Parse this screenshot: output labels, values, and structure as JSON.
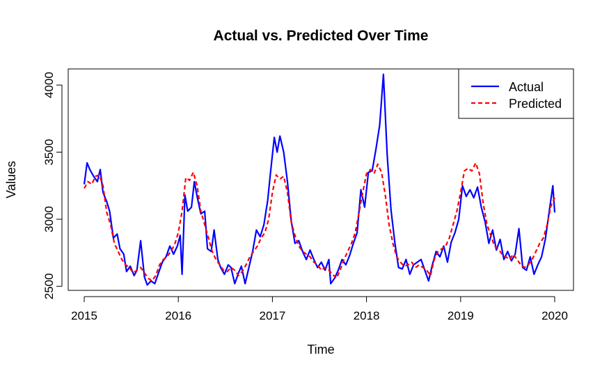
{
  "chart_data": {
    "type": "line",
    "title": "Actual vs. Predicted Over Time",
    "xlabel": "Time",
    "ylabel": "Values",
    "xlim": [
      2015,
      2020
    ],
    "ylim": [
      2470,
      4120
    ],
    "x_ticks": [
      2015,
      2016,
      2017,
      2018,
      2019,
      2020
    ],
    "y_ticks": [
      2500,
      3000,
      3500,
      4000
    ],
    "grid": false,
    "legend_position": "top-right",
    "series": [
      {
        "name": "Actual",
        "color": "#0000FF",
        "style": "solid",
        "points": [
          [
            2015.0,
            3260
          ],
          [
            2015.03,
            3420
          ],
          [
            2015.06,
            3370
          ],
          [
            2015.1,
            3320
          ],
          [
            2015.14,
            3280
          ],
          [
            2015.17,
            3370
          ],
          [
            2015.2,
            3200
          ],
          [
            2015.24,
            3130
          ],
          [
            2015.27,
            3060
          ],
          [
            2015.31,
            2860
          ],
          [
            2015.35,
            2890
          ],
          [
            2015.38,
            2780
          ],
          [
            2015.42,
            2740
          ],
          [
            2015.45,
            2610
          ],
          [
            2015.49,
            2650
          ],
          [
            2015.53,
            2580
          ],
          [
            2015.56,
            2620
          ],
          [
            2015.6,
            2840
          ],
          [
            2015.64,
            2570
          ],
          [
            2015.67,
            2510
          ],
          [
            2015.71,
            2540
          ],
          [
            2015.75,
            2520
          ],
          [
            2015.79,
            2600
          ],
          [
            2015.83,
            2680
          ],
          [
            2015.87,
            2720
          ],
          [
            2015.91,
            2800
          ],
          [
            2015.95,
            2740
          ],
          [
            2015.99,
            2800
          ],
          [
            2016.02,
            2880
          ],
          [
            2016.04,
            2590
          ],
          [
            2016.07,
            3180
          ],
          [
            2016.1,
            3060
          ],
          [
            2016.14,
            3090
          ],
          [
            2016.17,
            3280
          ],
          [
            2016.2,
            3170
          ],
          [
            2016.24,
            3040
          ],
          [
            2016.28,
            3060
          ],
          [
            2016.31,
            2780
          ],
          [
            2016.35,
            2760
          ],
          [
            2016.38,
            2920
          ],
          [
            2016.42,
            2700
          ],
          [
            2016.45,
            2640
          ],
          [
            2016.49,
            2590
          ],
          [
            2016.53,
            2660
          ],
          [
            2016.56,
            2640
          ],
          [
            2016.6,
            2520
          ],
          [
            2016.64,
            2600
          ],
          [
            2016.67,
            2650
          ],
          [
            2016.71,
            2520
          ],
          [
            2016.75,
            2640
          ],
          [
            2016.79,
            2760
          ],
          [
            2016.83,
            2920
          ],
          [
            2016.87,
            2870
          ],
          [
            2016.91,
            2960
          ],
          [
            2016.95,
            3140
          ],
          [
            2016.98,
            3350
          ],
          [
            2017.02,
            3610
          ],
          [
            2017.05,
            3500
          ],
          [
            2017.08,
            3620
          ],
          [
            2017.12,
            3500
          ],
          [
            2017.16,
            3280
          ],
          [
            2017.2,
            2990
          ],
          [
            2017.24,
            2820
          ],
          [
            2017.28,
            2840
          ],
          [
            2017.32,
            2760
          ],
          [
            2017.36,
            2700
          ],
          [
            2017.4,
            2770
          ],
          [
            2017.44,
            2700
          ],
          [
            2017.48,
            2640
          ],
          [
            2017.52,
            2680
          ],
          [
            2017.56,
            2620
          ],
          [
            2017.6,
            2700
          ],
          [
            2017.62,
            2520
          ],
          [
            2017.66,
            2560
          ],
          [
            2017.7,
            2620
          ],
          [
            2017.74,
            2700
          ],
          [
            2017.78,
            2660
          ],
          [
            2017.82,
            2730
          ],
          [
            2017.86,
            2820
          ],
          [
            2017.9,
            2900
          ],
          [
            2017.94,
            3220
          ],
          [
            2017.98,
            3090
          ],
          [
            2018.02,
            3350
          ],
          [
            2018.06,
            3360
          ],
          [
            2018.1,
            3520
          ],
          [
            2018.14,
            3700
          ],
          [
            2018.18,
            4080
          ],
          [
            2018.22,
            3480
          ],
          [
            2018.26,
            3070
          ],
          [
            2018.3,
            2830
          ],
          [
            2018.34,
            2640
          ],
          [
            2018.38,
            2630
          ],
          [
            2018.42,
            2700
          ],
          [
            2018.46,
            2590
          ],
          [
            2018.5,
            2660
          ],
          [
            2018.54,
            2680
          ],
          [
            2018.58,
            2700
          ],
          [
            2018.62,
            2620
          ],
          [
            2018.66,
            2540
          ],
          [
            2018.7,
            2660
          ],
          [
            2018.74,
            2760
          ],
          [
            2018.78,
            2720
          ],
          [
            2018.82,
            2800
          ],
          [
            2018.86,
            2680
          ],
          [
            2018.9,
            2830
          ],
          [
            2018.94,
            2900
          ],
          [
            2018.98,
            3000
          ],
          [
            2019.02,
            3250
          ],
          [
            2019.06,
            3170
          ],
          [
            2019.1,
            3220
          ],
          [
            2019.14,
            3160
          ],
          [
            2019.18,
            3240
          ],
          [
            2019.22,
            3090
          ],
          [
            2019.26,
            2980
          ],
          [
            2019.3,
            2820
          ],
          [
            2019.34,
            2920
          ],
          [
            2019.38,
            2770
          ],
          [
            2019.42,
            2850
          ],
          [
            2019.46,
            2700
          ],
          [
            2019.5,
            2760
          ],
          [
            2019.54,
            2690
          ],
          [
            2019.58,
            2740
          ],
          [
            2019.62,
            2930
          ],
          [
            2019.66,
            2640
          ],
          [
            2019.7,
            2620
          ],
          [
            2019.74,
            2720
          ],
          [
            2019.78,
            2590
          ],
          [
            2019.82,
            2660
          ],
          [
            2019.86,
            2720
          ],
          [
            2019.9,
            2850
          ],
          [
            2019.94,
            3050
          ],
          [
            2019.98,
            3250
          ],
          [
            2020.0,
            3050
          ]
        ]
      },
      {
        "name": "Predicted",
        "color": "#FF0000",
        "style": "dashed",
        "points": [
          [
            2015.0,
            3230
          ],
          [
            2015.04,
            3280
          ],
          [
            2015.08,
            3260
          ],
          [
            2015.12,
            3320
          ],
          [
            2015.16,
            3330
          ],
          [
            2015.2,
            3250
          ],
          [
            2015.24,
            3050
          ],
          [
            2015.28,
            2960
          ],
          [
            2015.32,
            2820
          ],
          [
            2015.36,
            2760
          ],
          [
            2015.4,
            2700
          ],
          [
            2015.44,
            2660
          ],
          [
            2015.48,
            2640
          ],
          [
            2015.52,
            2600
          ],
          [
            2015.56,
            2620
          ],
          [
            2015.6,
            2640
          ],
          [
            2015.64,
            2600
          ],
          [
            2015.68,
            2560
          ],
          [
            2015.72,
            2540
          ],
          [
            2015.76,
            2580
          ],
          [
            2015.8,
            2660
          ],
          [
            2015.84,
            2700
          ],
          [
            2015.88,
            2720
          ],
          [
            2015.92,
            2760
          ],
          [
            2015.96,
            2810
          ],
          [
            2016.0,
            2900
          ],
          [
            2016.04,
            3060
          ],
          [
            2016.08,
            3310
          ],
          [
            2016.12,
            3290
          ],
          [
            2016.16,
            3350
          ],
          [
            2016.2,
            3250
          ],
          [
            2016.24,
            3060
          ],
          [
            2016.28,
            2960
          ],
          [
            2016.32,
            2860
          ],
          [
            2016.36,
            2760
          ],
          [
            2016.4,
            2700
          ],
          [
            2016.44,
            2660
          ],
          [
            2016.48,
            2620
          ],
          [
            2016.52,
            2610
          ],
          [
            2016.56,
            2640
          ],
          [
            2016.6,
            2620
          ],
          [
            2016.64,
            2580
          ],
          [
            2016.68,
            2610
          ],
          [
            2016.72,
            2660
          ],
          [
            2016.76,
            2720
          ],
          [
            2016.8,
            2760
          ],
          [
            2016.84,
            2800
          ],
          [
            2016.88,
            2860
          ],
          [
            2016.92,
            2900
          ],
          [
            2016.96,
            3000
          ],
          [
            2017.0,
            3200
          ],
          [
            2017.04,
            3330
          ],
          [
            2017.08,
            3300
          ],
          [
            2017.12,
            3320
          ],
          [
            2017.16,
            3200
          ],
          [
            2017.2,
            2980
          ],
          [
            2017.24,
            2880
          ],
          [
            2017.28,
            2800
          ],
          [
            2017.32,
            2760
          ],
          [
            2017.36,
            2740
          ],
          [
            2017.4,
            2720
          ],
          [
            2017.44,
            2680
          ],
          [
            2017.48,
            2660
          ],
          [
            2017.52,
            2620
          ],
          [
            2017.56,
            2640
          ],
          [
            2017.6,
            2620
          ],
          [
            2017.64,
            2590
          ],
          [
            2017.68,
            2560
          ],
          [
            2017.72,
            2620
          ],
          [
            2017.76,
            2700
          ],
          [
            2017.8,
            2760
          ],
          [
            2017.84,
            2820
          ],
          [
            2017.88,
            2900
          ],
          [
            2017.92,
            3050
          ],
          [
            2017.96,
            3200
          ],
          [
            2018.0,
            3340
          ],
          [
            2018.04,
            3370
          ],
          [
            2018.08,
            3340
          ],
          [
            2018.12,
            3410
          ],
          [
            2018.16,
            3350
          ],
          [
            2018.2,
            3180
          ],
          [
            2018.24,
            2960
          ],
          [
            2018.28,
            2820
          ],
          [
            2018.32,
            2720
          ],
          [
            2018.36,
            2680
          ],
          [
            2018.4,
            2650
          ],
          [
            2018.44,
            2660
          ],
          [
            2018.48,
            2680
          ],
          [
            2018.52,
            2640
          ],
          [
            2018.56,
            2660
          ],
          [
            2018.6,
            2640
          ],
          [
            2018.64,
            2620
          ],
          [
            2018.68,
            2580
          ],
          [
            2018.72,
            2700
          ],
          [
            2018.76,
            2760
          ],
          [
            2018.8,
            2780
          ],
          [
            2018.84,
            2800
          ],
          [
            2018.88,
            2860
          ],
          [
            2018.92,
            2960
          ],
          [
            2018.96,
            3060
          ],
          [
            2019.0,
            3200
          ],
          [
            2019.04,
            3360
          ],
          [
            2019.08,
            3380
          ],
          [
            2019.12,
            3360
          ],
          [
            2019.16,
            3420
          ],
          [
            2019.2,
            3340
          ],
          [
            2019.24,
            3120
          ],
          [
            2019.28,
            2960
          ],
          [
            2019.32,
            2880
          ],
          [
            2019.36,
            2800
          ],
          [
            2019.4,
            2780
          ],
          [
            2019.44,
            2740
          ],
          [
            2019.48,
            2720
          ],
          [
            2019.52,
            2700
          ],
          [
            2019.56,
            2740
          ],
          [
            2019.6,
            2700
          ],
          [
            2019.64,
            2660
          ],
          [
            2019.68,
            2640
          ],
          [
            2019.72,
            2660
          ],
          [
            2019.76,
            2700
          ],
          [
            2019.8,
            2760
          ],
          [
            2019.84,
            2820
          ],
          [
            2019.88,
            2860
          ],
          [
            2019.92,
            2960
          ],
          [
            2019.96,
            3100
          ],
          [
            2020.0,
            3160
          ]
        ]
      }
    ]
  }
}
